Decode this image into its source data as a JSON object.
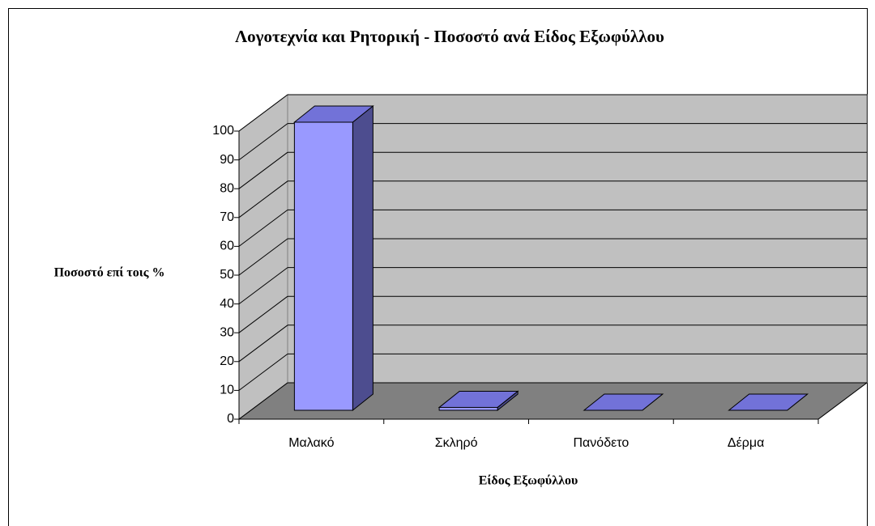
{
  "chart_data": {
    "type": "bar3d",
    "title": "Λογοτεχνία και Ρητορική - Ποσοστό ανά Είδος Εξωφύλλου",
    "x_label": "Είδος Εξωφύλλου",
    "y_label": "Ποσοστό επί τοις %",
    "categories": [
      "Μαλακό",
      "Σκληρό",
      "Πανόδετο",
      "Δέρμα"
    ],
    "values": [
      100,
      1,
      0,
      0
    ],
    "color": "#9999ff",
    "ylim": [
      0,
      100
    ],
    "yticks": [
      0,
      10,
      20,
      30,
      40,
      50,
      60,
      70,
      80,
      90,
      100
    ],
    "grid": true
  }
}
